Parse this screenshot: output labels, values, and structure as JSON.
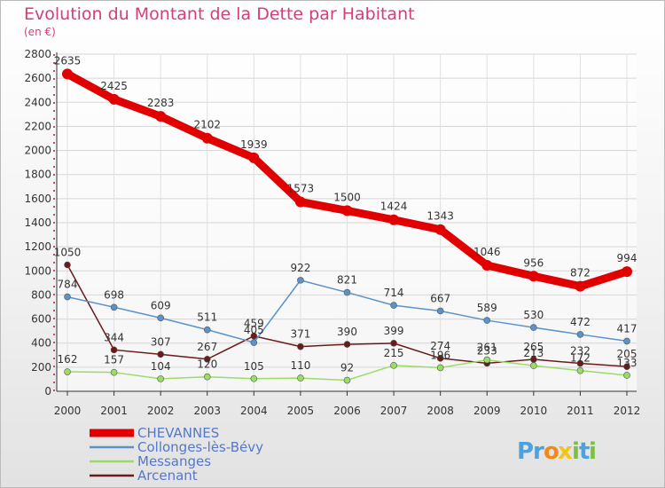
{
  "title": "Evolution du Montant de la Dette par Habitant",
  "subtitle": "(en €)",
  "chart_data": {
    "type": "line",
    "x": [
      "2000",
      "2001",
      "2002",
      "2003",
      "2004",
      "2005",
      "2006",
      "2007",
      "2008",
      "2009",
      "2010",
      "2011",
      "2012"
    ],
    "ylim": [
      0,
      2800
    ],
    "yticks": [
      0,
      200,
      400,
      600,
      800,
      1000,
      1200,
      1400,
      1600,
      1800,
      2000,
      2200,
      2400,
      2600,
      2800
    ],
    "grid": true,
    "legend_position": "bottom-left",
    "series": [
      {
        "name": "CHEVANNES",
        "color": "#e00000",
        "values": [
          2635,
          2425,
          2283,
          2102,
          1939,
          1573,
          1500,
          1424,
          1343,
          1046,
          956,
          872,
          994
        ]
      },
      {
        "name": "Collonges-lès-Bévy",
        "color": "#5b93c8",
        "values": [
          784,
          698,
          609,
          511,
          405,
          922,
          821,
          714,
          667,
          589,
          530,
          472,
          417
        ]
      },
      {
        "name": "Messanges",
        "color": "#99dd66",
        "values": [
          162,
          157,
          104,
          120,
          105,
          110,
          92,
          215,
          196,
          261,
          213,
          172,
          133
        ]
      },
      {
        "name": "Arcenant",
        "color": "#6b1a1a",
        "values": [
          1050,
          344,
          307,
          267,
          459,
          371,
          390,
          399,
          274,
          233,
          265,
          232,
          205
        ]
      }
    ]
  },
  "logo": {
    "text": "Proxiti",
    "letters": [
      "P",
      "r",
      "o",
      "x",
      "i",
      "t",
      "i"
    ],
    "colors": [
      "#4aa3df",
      "#4aa3df",
      "#f08a1c",
      "#f0c419",
      "#7ac143",
      "#4aa3df",
      "#7ac143"
    ]
  }
}
